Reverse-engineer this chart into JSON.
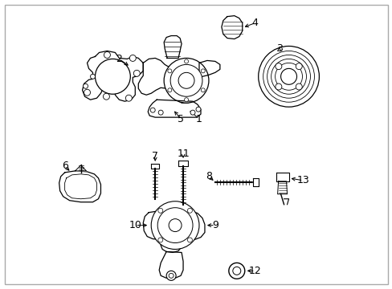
{
  "bg_color": "#ffffff",
  "line_color": "#000000",
  "fig_width": 4.89,
  "fig_height": 3.6,
  "dpi": 100,
  "border_color": "#aaaaaa"
}
